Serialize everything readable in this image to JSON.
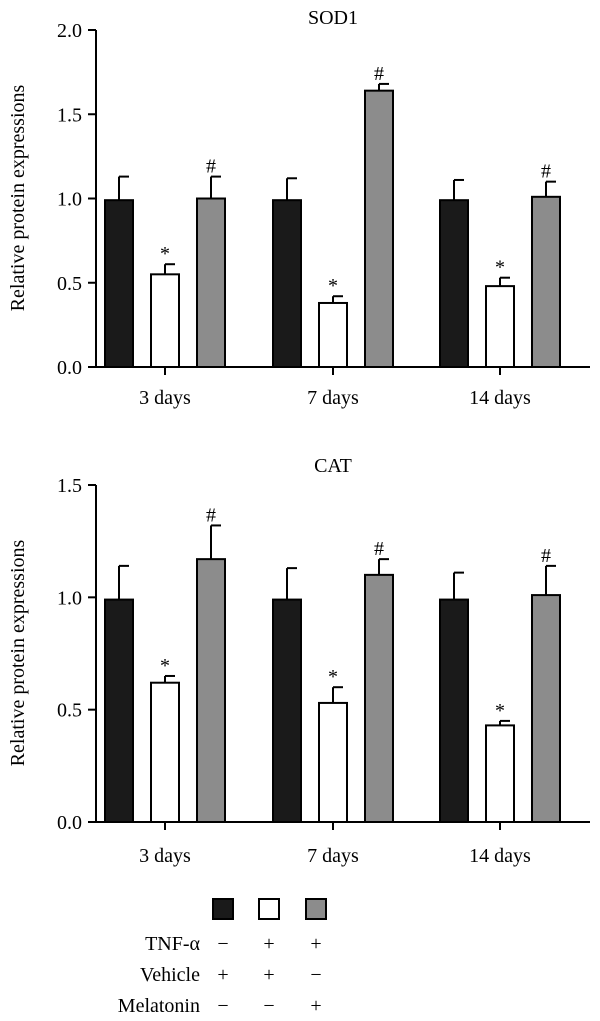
{
  "chart_data": [
    {
      "type": "bar",
      "title": "SOD1",
      "ylabel": "Relative protein expressions",
      "xlabel": "",
      "ylim": [
        0,
        2.0
      ],
      "yticks": [
        "0.0",
        "0.5",
        "1.0",
        "1.5",
        "2.0"
      ],
      "ytick_values": [
        0,
        0.5,
        1.0,
        1.5,
        2.0
      ],
      "categories": [
        "3 days",
        "7 days",
        "14 days"
      ],
      "series": [
        {
          "color": "#1a1a1a",
          "values": [
            0.99,
            0.99,
            0.99
          ],
          "errors": [
            0.14,
            0.13,
            0.12
          ],
          "annotations": [
            "",
            "",
            ""
          ]
        },
        {
          "color": "#ffffff",
          "values": [
            0.55,
            0.38,
            0.48
          ],
          "errors": [
            0.06,
            0.04,
            0.05
          ],
          "annotations": [
            "*",
            "*",
            "*"
          ]
        },
        {
          "color": "#8c8c8c",
          "values": [
            1.0,
            1.64,
            1.01
          ],
          "errors": [
            0.13,
            0.04,
            0.09
          ],
          "annotations": [
            "#",
            "#",
            "#"
          ]
        }
      ]
    },
    {
      "type": "bar",
      "title": "CAT",
      "ylabel": "Relative protein expressions",
      "xlabel": "",
      "ylim": [
        0,
        1.5
      ],
      "yticks": [
        "0.0",
        "0.5",
        "1.0",
        "1.5"
      ],
      "ytick_values": [
        0,
        0.5,
        1.0,
        1.5
      ],
      "categories": [
        "3 days",
        "7 days",
        "14 days"
      ],
      "series": [
        {
          "color": "#1a1a1a",
          "values": [
            0.99,
            0.99,
            0.99
          ],
          "errors": [
            0.15,
            0.14,
            0.12
          ],
          "annotations": [
            "",
            "",
            ""
          ]
        },
        {
          "color": "#ffffff",
          "values": [
            0.62,
            0.53,
            0.43
          ],
          "errors": [
            0.03,
            0.07,
            0.02
          ],
          "annotations": [
            "*",
            "*",
            "*"
          ]
        },
        {
          "color": "#8c8c8c",
          "values": [
            1.17,
            1.1,
            1.01
          ],
          "errors": [
            0.15,
            0.07,
            0.13
          ],
          "annotations": [
            "#",
            "#",
            "#"
          ]
        }
      ]
    }
  ],
  "legend": {
    "swatch_colors": [
      "#1a1a1a",
      "#ffffff",
      "#8c8c8c"
    ],
    "rows": [
      {
        "label": "TNF-α",
        "signs": [
          "−",
          "+",
          "+"
        ]
      },
      {
        "label": "Vehicle",
        "signs": [
          "+",
          "+",
          "−"
        ]
      },
      {
        "label": "Melatonin",
        "signs": [
          "−",
          "−",
          "+"
        ]
      }
    ]
  }
}
